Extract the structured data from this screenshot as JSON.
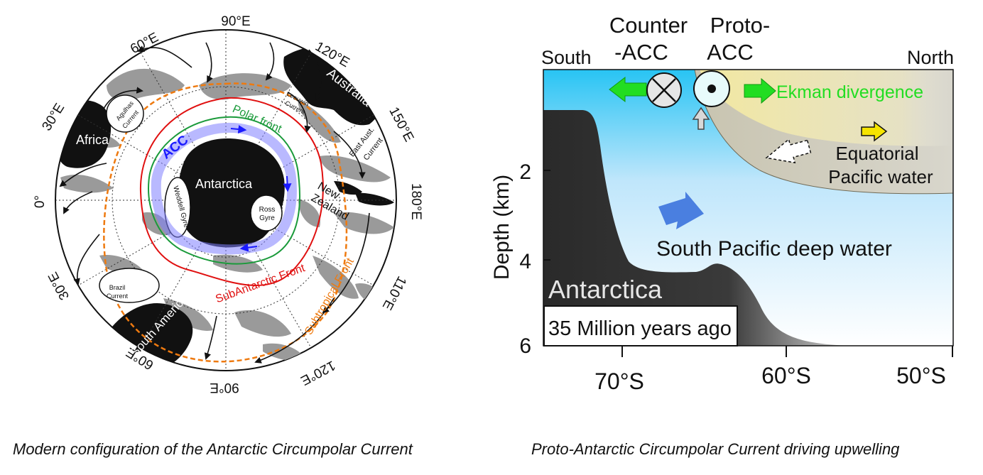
{
  "left_map": {
    "lon_labels": {
      "e90_top": "90°E",
      "e60_top": "60°E",
      "e120_top": "120°E",
      "e30_left": "30°E",
      "e150_right": "150°E",
      "zero": "0°",
      "e180": "180°E",
      "e30_low": "30°E",
      "e110": "110°E",
      "e60_bottom": "60°E",
      "e90_bottom": "90°E",
      "e120_bottom": "120°E"
    },
    "land": {
      "antarctica": "Antarctica",
      "africa": "Africa",
      "australia": "Australia",
      "new_zealand_1": "New",
      "new_zealand_2": "Zealand",
      "south_america": "South America"
    },
    "currents": {
      "agulhas_1": "Agulhas",
      "agulhas_2": "Current",
      "leeuwin_1": "Leeuwin",
      "leeuwin_2": "Current",
      "east_aust_1": "East Aust.",
      "east_aust_2": "Current",
      "brazil_1": "Brazil",
      "brazil_2": "Current",
      "weddell": "Weddell Gyre",
      "ross_1": "Ross",
      "ross_2": "Gyre"
    },
    "fronts": {
      "acc": "ACC",
      "polar": "Polar front",
      "subantarctic": "SubAntarctic Front",
      "subtropical": "Subtropical Front"
    },
    "colors": {
      "land": "#111111",
      "shelf": "#9a9a9a",
      "acc": "#8080ff",
      "polar": "#1a9a3a",
      "subantarctic": "#e01010",
      "subtropical": "#ee7a10"
    }
  },
  "right_section": {
    "south": "South",
    "north": "North",
    "counter_1": "Counter",
    "counter_2": "-ACC",
    "proto_1": "Proto-",
    "proto_2": "ACC",
    "ekman": "Ekman divergence",
    "eq_1": "Equatorial",
    "eq_2": "Pacific water",
    "deep": "South Pacific deep water",
    "antarctica": "Antarctica",
    "time": "35 Million years ago",
    "ylabel": "Depth (km)",
    "y_ticks": [
      "2",
      "4",
      "6"
    ],
    "x_ticks": [
      "70°S",
      "60°S",
      "50°S"
    ],
    "colors": {
      "ekman": "#22dd22",
      "deep_arrow": "#4a7fe0",
      "antarctica": "#303030"
    }
  },
  "captions": {
    "left": "Modern configuration of the Antarctic Circumpolar Current",
    "right": "Proto-Antarctic Circumpolar Current driving upwelling"
  }
}
